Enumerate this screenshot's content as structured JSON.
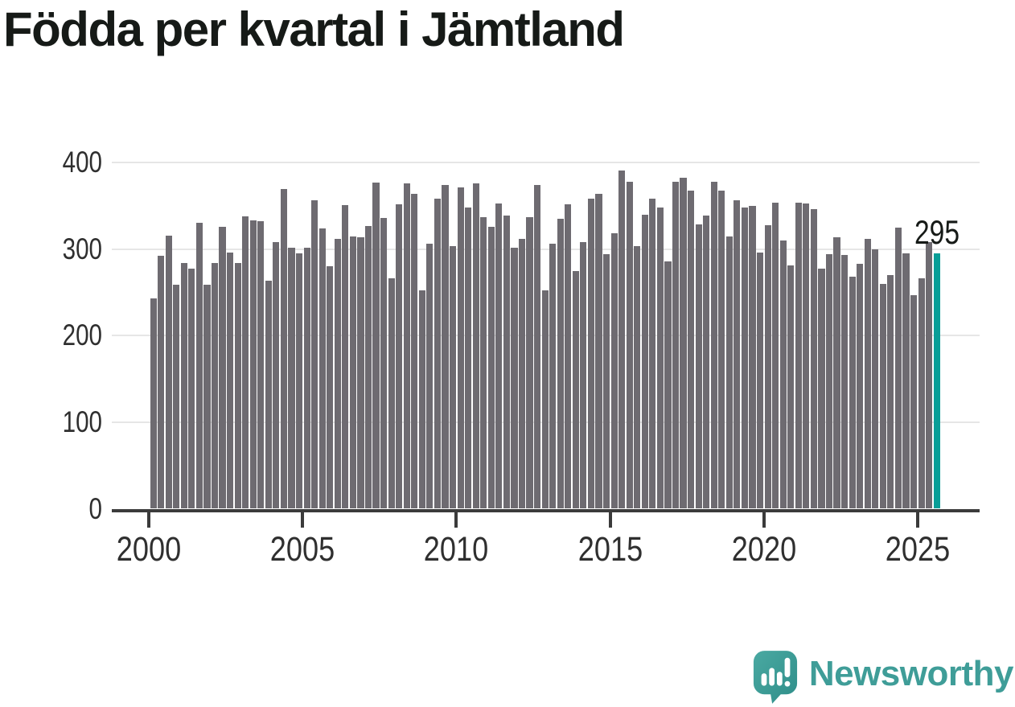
{
  "title": "Födda per kvartal i Jämtland",
  "chart_data": {
    "type": "bar",
    "title": "Födda per kvartal i Jämtland",
    "x_unit": "quarter",
    "ylim": [
      0,
      400
    ],
    "yticks": [
      0,
      100,
      200,
      300,
      400
    ],
    "xticks": [
      2000,
      2005,
      2010,
      2015,
      2020,
      2025
    ],
    "grid": true,
    "bar_color": "#6e6b71",
    "series": [
      {
        "name": "Födda per kvartal",
        "years": [
          {
            "year": 2000,
            "values": [
              243,
              292,
              316,
              259
            ]
          },
          {
            "year": 2001,
            "values": [
              284,
              278,
              331,
              259
            ]
          },
          {
            "year": 2002,
            "values": [
              284,
              326,
              296,
              284
            ]
          },
          {
            "year": 2003,
            "values": [
              338,
              333,
              332,
              264
            ]
          },
          {
            "year": 2004,
            "values": [
              308,
              370,
              302,
              295
            ]
          },
          {
            "year": 2005,
            "values": [
              302,
              357,
              324,
              280
            ]
          },
          {
            "year": 2006,
            "values": [
              312,
              351,
              315,
              314
            ]
          },
          {
            "year": 2007,
            "values": [
              327,
              377,
              336,
              266
            ]
          },
          {
            "year": 2008,
            "values": [
              352,
              376,
              364,
              252
            ]
          },
          {
            "year": 2009,
            "values": [
              306,
              358,
              374,
              304
            ]
          },
          {
            "year": 2010,
            "values": [
              371,
              348,
              376,
              337
            ]
          },
          {
            "year": 2011,
            "values": [
              326,
              353,
              339,
              302
            ]
          },
          {
            "year": 2012,
            "values": [
              312,
              337,
              374,
              252
            ]
          },
          {
            "year": 2013,
            "values": [
              306,
              335,
              352,
              275
            ]
          },
          {
            "year": 2014,
            "values": [
              308,
              358,
              364,
              294
            ]
          },
          {
            "year": 2015,
            "values": [
              318,
              391,
              378,
              304
            ]
          },
          {
            "year": 2016,
            "values": [
              340,
              358,
              348,
              286
            ]
          },
          {
            "year": 2017,
            "values": [
              378,
              383,
              368,
              329
            ]
          },
          {
            "year": 2018,
            "values": [
              339,
              378,
              368,
              315
            ]
          },
          {
            "year": 2019,
            "values": [
              357,
              348,
              350,
              296
            ]
          },
          {
            "year": 2020,
            "values": [
              328,
              354,
              310,
              281
            ]
          },
          {
            "year": 2021,
            "values": [
              354,
              353,
              346,
              278
            ]
          },
          {
            "year": 2022,
            "values": [
              294,
              314,
              293,
              268
            ]
          },
          {
            "year": 2023,
            "values": [
              283,
              312,
              300,
              260
            ]
          },
          {
            "year": 2024,
            "values": [
              270,
              325,
              295,
              247
            ]
          },
          {
            "year": 2025,
            "values": [
              266,
              308,
              295
            ]
          }
        ]
      }
    ],
    "highlight": {
      "quarter": "2025 Q3",
      "value": 295,
      "label": "295",
      "color": "#089e97"
    }
  },
  "footer": {
    "brand": "Newsworthy",
    "brand_color": "#3f9d98",
    "brand_icon": "chart-speech-bubble-icon"
  }
}
